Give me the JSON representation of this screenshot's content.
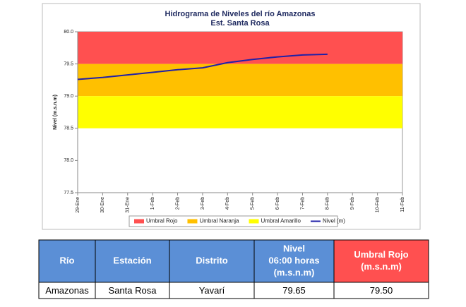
{
  "chart_data": {
    "type": "line",
    "title": "Hidrograma de Niveles del río Amazonas",
    "subtitle": "Est. Santa Rosa",
    "y_label": "Nivel (m.s.n.m)",
    "categories": [
      "29-Ene",
      "30-Ene",
      "31-Ene",
      "1-Feb",
      "2-Feb",
      "3-Feb",
      "4-Feb",
      "5-Feb",
      "6-Feb",
      "7-Feb",
      "8-Feb",
      "9-Feb",
      "10-Feb",
      "11-Feb"
    ],
    "bands": [
      {
        "name": "Umbral Rojo",
        "color": "#ff5050",
        "from": 79.5,
        "to": 80
      },
      {
        "name": "Umbral Naranja",
        "color": "#ffc000",
        "from": 79,
        "to": 79.5
      },
      {
        "name": "Umbral Amarillo",
        "color": "#ffff00",
        "from": 78.5,
        "to": 79
      }
    ],
    "series": [
      {
        "name": "Nivel (m)",
        "color": "#2020a8",
        "values": [
          79.26,
          79.29,
          79.33,
          79.37,
          79.41,
          79.44,
          79.52,
          79.57,
          79.61,
          79.64,
          79.65,
          null,
          null,
          null
        ]
      }
    ],
    "ylim": [
      77.5,
      80
    ],
    "yticks": [
      77.5,
      {
        "value": 78,
        "label": "78.0"
      },
      78.5,
      {
        "value": 79,
        "label": "79.0"
      },
      79.5,
      {
        "value": 80,
        "label": "80.0"
      }
    ],
    "legend": "bottom"
  },
  "table": {
    "headers": [
      [
        "Río"
      ],
      [
        "Estación"
      ],
      [
        "Distrito"
      ],
      [
        "Nivel",
        "06:00 horas",
        "(m.s.n.m)"
      ],
      [
        "Umbral Rojo",
        "(m.s.n.m)"
      ]
    ],
    "rows": [
      [
        "Amazonas",
        "Santa Rosa",
        "Yavarí",
        "79.65",
        "79.50"
      ]
    ]
  }
}
